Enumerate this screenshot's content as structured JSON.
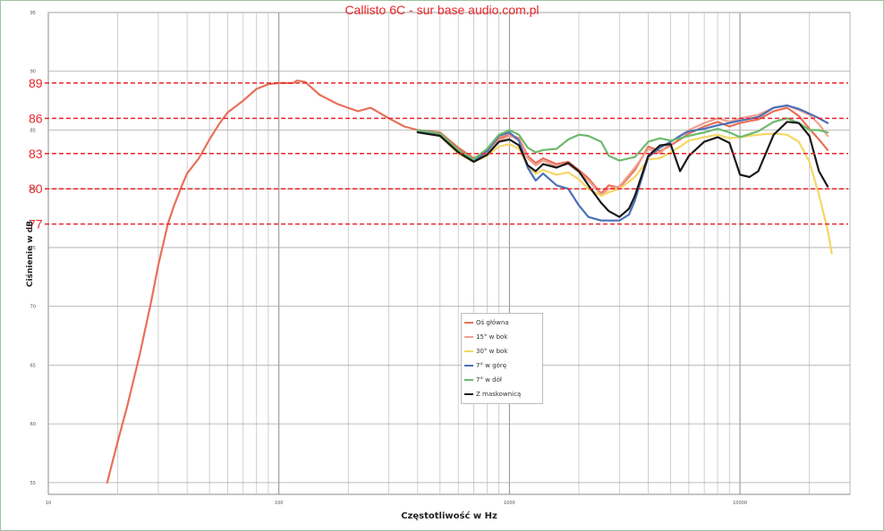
{
  "chart_data": {
    "type": "line",
    "title": "Callisto 6C - sur base audio.com.pl",
    "xlabel": "Częstotliwość w Hz",
    "ylabel": "Ciśnienie w dB",
    "xscale": "log",
    "xlim": [
      10,
      30000
    ],
    "ylim": [
      54,
      95
    ],
    "xticks": [
      {
        "value": 10,
        "label": "10"
      },
      {
        "value": 100,
        "label": "100"
      },
      {
        "value": 1000,
        "label": "1000"
      },
      {
        "value": 10000,
        "label": "10000"
      }
    ],
    "yticks": [
      {
        "value": 55,
        "label": "55"
      },
      {
        "value": 60,
        "label": "60"
      },
      {
        "value": 65,
        "label": "65"
      },
      {
        "value": 70,
        "label": "70"
      },
      {
        "value": 75,
        "label": "75"
      },
      {
        "value": 80,
        "label": "80"
      },
      {
        "value": 85,
        "label": "85"
      },
      {
        "value": 90,
        "label": "90"
      },
      {
        "value": 95,
        "label": "95"
      }
    ],
    "grid": true,
    "reference_lines": [
      {
        "y": 89,
        "label": "89"
      },
      {
        "y": 86,
        "label": "86"
      },
      {
        "y": 83,
        "label": "83"
      },
      {
        "y": 80,
        "label": "80"
      },
      {
        "y": 77,
        "label": "77"
      }
    ],
    "reference_color": "#e8262a",
    "legend_position": "center",
    "series": [
      {
        "name": "Oś główna",
        "color": "#e8705a",
        "points": [
          [
            18,
            55
          ],
          [
            20,
            58.5
          ],
          [
            22,
            61.5
          ],
          [
            25,
            66
          ],
          [
            28,
            70.5
          ],
          [
            30,
            73.5
          ],
          [
            33,
            77
          ],
          [
            35,
            78.5
          ],
          [
            38,
            80.3
          ],
          [
            40,
            81.3
          ],
          [
            45,
            82.6
          ],
          [
            50,
            84.2
          ],
          [
            55,
            85.5
          ],
          [
            60,
            86.5
          ],
          [
            70,
            87.5
          ],
          [
            80,
            88.5
          ],
          [
            90,
            88.9
          ],
          [
            100,
            89
          ],
          [
            115,
            89
          ],
          [
            120,
            89.2
          ],
          [
            130,
            89.1
          ],
          [
            150,
            88
          ],
          [
            180,
            87.2
          ],
          [
            220,
            86.6
          ],
          [
            250,
            86.9
          ],
          [
            300,
            86
          ],
          [
            350,
            85.3
          ],
          [
            400,
            85
          ],
          [
            500,
            84.8
          ],
          [
            600,
            83.5
          ],
          [
            700,
            82.6
          ],
          [
            800,
            83.2
          ],
          [
            900,
            84.3
          ],
          [
            1000,
            84.6
          ],
          [
            1100,
            84.3
          ],
          [
            1200,
            82.8
          ],
          [
            1300,
            82.2
          ],
          [
            1400,
            82.6
          ],
          [
            1600,
            82.1
          ],
          [
            1800,
            82.3
          ],
          [
            2000,
            81.6
          ],
          [
            2200,
            80.9
          ],
          [
            2500,
            79.6
          ],
          [
            2700,
            80.3
          ],
          [
            3000,
            80.1
          ],
          [
            3500,
            81.6
          ],
          [
            4000,
            83.6
          ],
          [
            4500,
            83.2
          ],
          [
            5000,
            83.7
          ],
          [
            5500,
            84.2
          ],
          [
            6000,
            84.7
          ],
          [
            7000,
            85.3
          ],
          [
            8000,
            85.7
          ],
          [
            9000,
            85.3
          ],
          [
            10000,
            85.6
          ],
          [
            12000,
            85.9
          ],
          [
            14000,
            86.6
          ],
          [
            16000,
            86.9
          ],
          [
            18000,
            86.2
          ],
          [
            20000,
            85.1
          ],
          [
            22000,
            84.2
          ],
          [
            24000,
            83.3
          ]
        ]
      },
      {
        "name": "15° w bok",
        "color": "#f0a090",
        "points": [
          [
            400,
            84.9
          ],
          [
            500,
            84.6
          ],
          [
            600,
            83.2
          ],
          [
            700,
            82.4
          ],
          [
            800,
            83.1
          ],
          [
            900,
            84.1
          ],
          [
            1000,
            84.5
          ],
          [
            1100,
            84.2
          ],
          [
            1200,
            82.6
          ],
          [
            1300,
            82
          ],
          [
            1400,
            82.4
          ],
          [
            1600,
            81.9
          ],
          [
            1800,
            82.1
          ],
          [
            2000,
            81.4
          ],
          [
            2200,
            80.7
          ],
          [
            2500,
            79.5
          ],
          [
            2700,
            80
          ],
          [
            3000,
            80.2
          ],
          [
            3500,
            81.8
          ],
          [
            4000,
            83.4
          ],
          [
            4500,
            83
          ],
          [
            5000,
            84
          ],
          [
            5500,
            84.5
          ],
          [
            6000,
            85
          ],
          [
            7000,
            85.6
          ],
          [
            8000,
            86
          ],
          [
            9000,
            85.7
          ],
          [
            10000,
            86
          ],
          [
            12000,
            86.3
          ],
          [
            14000,
            86.9
          ],
          [
            16000,
            87.1
          ],
          [
            18000,
            86.7
          ],
          [
            20000,
            86.3
          ],
          [
            22000,
            85.5
          ],
          [
            24000,
            84.5
          ]
        ]
      },
      {
        "name": "30° w bok",
        "color": "#f5d765",
        "points": [
          [
            400,
            84.8
          ],
          [
            500,
            84.5
          ],
          [
            600,
            83
          ],
          [
            700,
            82.3
          ],
          [
            800,
            82.8
          ],
          [
            900,
            83.6
          ],
          [
            1000,
            83.8
          ],
          [
            1100,
            83.4
          ],
          [
            1200,
            81.9
          ],
          [
            1300,
            81.3
          ],
          [
            1400,
            81.6
          ],
          [
            1600,
            81.2
          ],
          [
            1800,
            81.4
          ],
          [
            2000,
            80.8
          ],
          [
            2200,
            80
          ],
          [
            2500,
            79.4
          ],
          [
            2700,
            79.7
          ],
          [
            3000,
            80
          ],
          [
            3500,
            81
          ],
          [
            4000,
            82.5
          ],
          [
            4500,
            82.6
          ],
          [
            5000,
            83.1
          ],
          [
            5500,
            83.6
          ],
          [
            6000,
            84.1
          ],
          [
            7000,
            84.4
          ],
          [
            8000,
            84.6
          ],
          [
            9000,
            84.3
          ],
          [
            10000,
            84.4
          ],
          [
            12000,
            84.6
          ],
          [
            14000,
            84.7
          ],
          [
            16000,
            84.6
          ],
          [
            18000,
            84
          ],
          [
            20000,
            82.3
          ],
          [
            22000,
            79.5
          ],
          [
            24000,
            76.5
          ],
          [
            25000,
            74.5
          ]
        ]
      },
      {
        "name": "7° w górę",
        "color": "#4a72b8",
        "points": [
          [
            400,
            84.9
          ],
          [
            500,
            84.6
          ],
          [
            600,
            83.2
          ],
          [
            700,
            82.4
          ],
          [
            800,
            83.2
          ],
          [
            900,
            84.5
          ],
          [
            1000,
            84.8
          ],
          [
            1100,
            84.1
          ],
          [
            1200,
            81.8
          ],
          [
            1300,
            80.7
          ],
          [
            1400,
            81.3
          ],
          [
            1600,
            80.3
          ],
          [
            1800,
            80
          ],
          [
            2000,
            78.6
          ],
          [
            2200,
            77.6
          ],
          [
            2500,
            77.3
          ],
          [
            2700,
            77.3
          ],
          [
            3000,
            77.3
          ],
          [
            3300,
            77.8
          ],
          [
            3500,
            79
          ],
          [
            4000,
            82.7
          ],
          [
            4500,
            83.5
          ],
          [
            5000,
            84
          ],
          [
            5500,
            84.5
          ],
          [
            6000,
            84.9
          ],
          [
            7000,
            85.1
          ],
          [
            8000,
            85.4
          ],
          [
            9000,
            85.6
          ],
          [
            10000,
            85.8
          ],
          [
            12000,
            86.1
          ],
          [
            14000,
            86.9
          ],
          [
            16000,
            87.1
          ],
          [
            18000,
            86.8
          ],
          [
            20000,
            86.4
          ],
          [
            22000,
            86
          ],
          [
            24000,
            85.6
          ]
        ]
      },
      {
        "name": "7° w dół",
        "color": "#6dba6d",
        "points": [
          [
            400,
            85
          ],
          [
            500,
            84.7
          ],
          [
            600,
            83.3
          ],
          [
            700,
            82.5
          ],
          [
            800,
            83.4
          ],
          [
            900,
            84.6
          ],
          [
            1000,
            85
          ],
          [
            1100,
            84.6
          ],
          [
            1200,
            83.5
          ],
          [
            1300,
            83.1
          ],
          [
            1400,
            83.3
          ],
          [
            1600,
            83.4
          ],
          [
            1800,
            84.2
          ],
          [
            2000,
            84.6
          ],
          [
            2200,
            84.5
          ],
          [
            2500,
            84
          ],
          [
            2700,
            82.8
          ],
          [
            3000,
            82.4
          ],
          [
            3500,
            82.7
          ],
          [
            4000,
            84
          ],
          [
            4500,
            84.3
          ],
          [
            5000,
            84.1
          ],
          [
            5500,
            84.3
          ],
          [
            6000,
            84.5
          ],
          [
            7000,
            84.8
          ],
          [
            8000,
            85.1
          ],
          [
            9000,
            84.8
          ],
          [
            10000,
            84.4
          ],
          [
            12000,
            84.9
          ],
          [
            14000,
            85.7
          ],
          [
            16000,
            86
          ],
          [
            18000,
            85.6
          ],
          [
            20000,
            85
          ],
          [
            22000,
            85
          ],
          [
            24000,
            84.8
          ]
        ]
      },
      {
        "name": "Z maskownicą",
        "color": "#1a1a1a",
        "points": [
          [
            400,
            84.8
          ],
          [
            500,
            84.5
          ],
          [
            600,
            83.1
          ],
          [
            700,
            82.3
          ],
          [
            800,
            82.9
          ],
          [
            900,
            84
          ],
          [
            1000,
            84.2
          ],
          [
            1100,
            83.7
          ],
          [
            1200,
            82
          ],
          [
            1300,
            81.5
          ],
          [
            1400,
            82.1
          ],
          [
            1600,
            81.8
          ],
          [
            1800,
            82.2
          ],
          [
            2000,
            81.5
          ],
          [
            2200,
            80.3
          ],
          [
            2500,
            78.8
          ],
          [
            2700,
            78.1
          ],
          [
            3000,
            77.6
          ],
          [
            3300,
            78.3
          ],
          [
            3500,
            79.4
          ],
          [
            4000,
            82.8
          ],
          [
            4500,
            83.7
          ],
          [
            5000,
            83.8
          ],
          [
            5500,
            81.5
          ],
          [
            6000,
            82.8
          ],
          [
            7000,
            84
          ],
          [
            8000,
            84.4
          ],
          [
            9000,
            83.9
          ],
          [
            10000,
            81.2
          ],
          [
            11000,
            81
          ],
          [
            12000,
            81.5
          ],
          [
            14000,
            84.6
          ],
          [
            16000,
            85.7
          ],
          [
            18000,
            85.6
          ],
          [
            20000,
            84.5
          ],
          [
            22000,
            81.5
          ],
          [
            24000,
            80.2
          ]
        ]
      }
    ]
  }
}
